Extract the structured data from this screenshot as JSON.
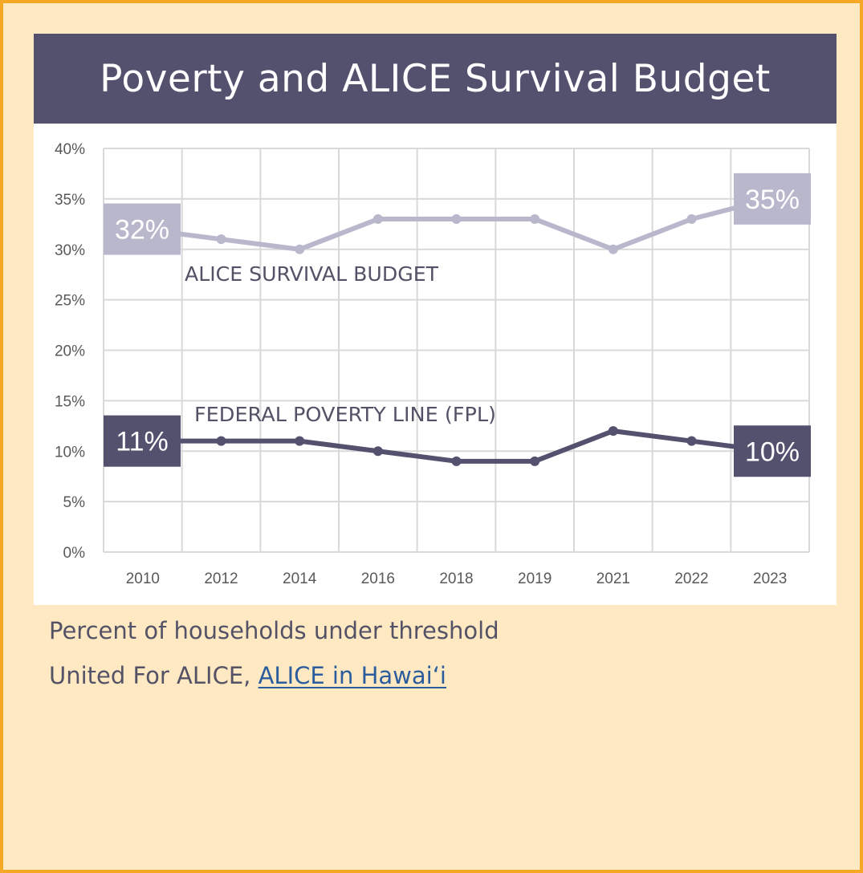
{
  "title": "Poverty and ALICE Survival Budget",
  "caption": {
    "line1": "Percent of households under threshold",
    "source_prefix": "United For ALICE,",
    "source_link": "ALICE in Hawai‘i"
  },
  "colors": {
    "background": "#ffe9c2",
    "border": "#f6a724",
    "title_bar": "#53516e",
    "alice_series": "#b9b7cc",
    "fpl_series": "#53516e",
    "grid": "#d9d9d9",
    "link": "#2a5c9e"
  },
  "chart_data": {
    "type": "line",
    "categories": [
      "2010",
      "2012",
      "2014",
      "2016",
      "2018",
      "2019",
      "2021",
      "2022",
      "2023"
    ],
    "ylim": [
      0,
      40
    ],
    "y_ticks": [
      "0%",
      "5%",
      "10%",
      "15%",
      "20%",
      "25%",
      "30%",
      "35%",
      "40%"
    ],
    "grid": true,
    "series": [
      {
        "name": "ALICE SURVIVAL BUDGET",
        "values": [
          32,
          31,
          30,
          33,
          33,
          33,
          30,
          33,
          35
        ],
        "color": "#b9b7cc",
        "start_label": "32%",
        "end_label": "35%"
      },
      {
        "name": "FEDERAL POVERTY LINE (FPL)",
        "values": [
          11,
          11,
          11,
          10,
          9,
          9,
          12,
          11,
          10
        ],
        "color": "#53516e",
        "start_label": "11%",
        "end_label": "10%"
      }
    ]
  }
}
